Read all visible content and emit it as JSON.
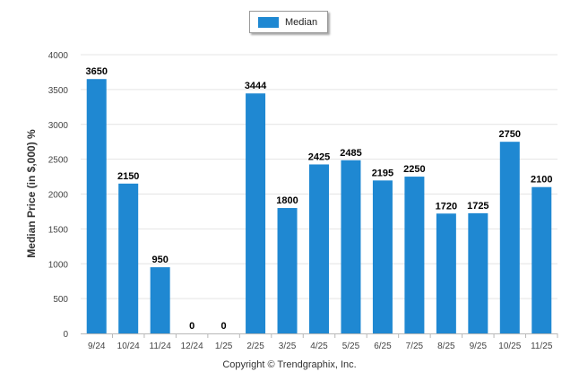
{
  "chart_data": {
    "type": "bar",
    "categories": [
      "9/24",
      "10/24",
      "11/24",
      "12/24",
      "1/25",
      "2/25",
      "3/25",
      "4/25",
      "5/25",
      "6/25",
      "7/25",
      "8/25",
      "9/25",
      "10/25",
      "11/25"
    ],
    "series": [
      {
        "name": "Median",
        "values": [
          3650,
          2150,
          950,
          0,
          0,
          3444,
          1800,
          2425,
          2485,
          2195,
          2250,
          1720,
          1725,
          2750,
          2100
        ]
      }
    ],
    "ylabel": "Median Price (in $,000) %",
    "ylim": [
      0,
      4000
    ],
    "yticks": [
      0,
      500,
      1000,
      1500,
      2000,
      2500,
      3000,
      3500,
      4000
    ],
    "legend": "top-center",
    "grid": true,
    "bar_color": "#1f88d2"
  },
  "footer": "Copyright © Trendgraphix, Inc."
}
